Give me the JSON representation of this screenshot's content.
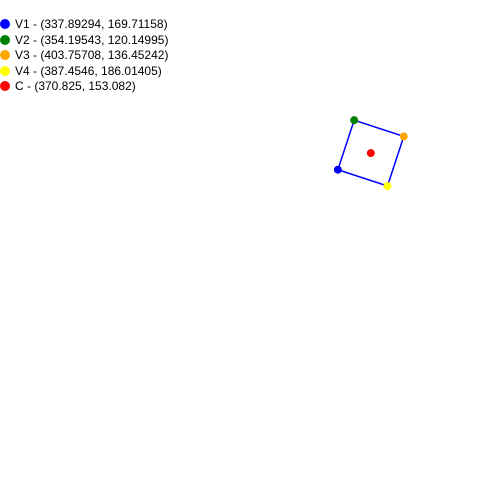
{
  "legend": {
    "items": [
      {
        "label": "V1 - (337.89294, 169.71158)",
        "color": "#0000ff"
      },
      {
        "label": "V2 - (354.19543, 120.14995)",
        "color": "#008000"
      },
      {
        "label": "V3 - (403.75708, 136.45242)",
        "color": "#ffa500"
      },
      {
        "label": "V4 - (387.4546, 186.01405)",
        "color": "#ffff00"
      },
      {
        "label": "C - (370.825, 153.082)",
        "color": "#ff0000"
      }
    ]
  },
  "shape": {
    "edge_color": "#0000ff",
    "vertices": [
      {
        "name": "V1",
        "x": 337.89294,
        "y": 169.71158,
        "color": "#0000ff"
      },
      {
        "name": "V2",
        "x": 354.19543,
        "y": 120.14995,
        "color": "#008000"
      },
      {
        "name": "V3",
        "x": 403.75708,
        "y": 136.45242,
        "color": "#ffa500"
      },
      {
        "name": "V4",
        "x": 387.4546,
        "y": 186.01405,
        "color": "#ffff00"
      }
    ],
    "center": {
      "name": "C",
      "x": 370.825,
      "y": 153.082,
      "color": "#ff0000"
    }
  }
}
